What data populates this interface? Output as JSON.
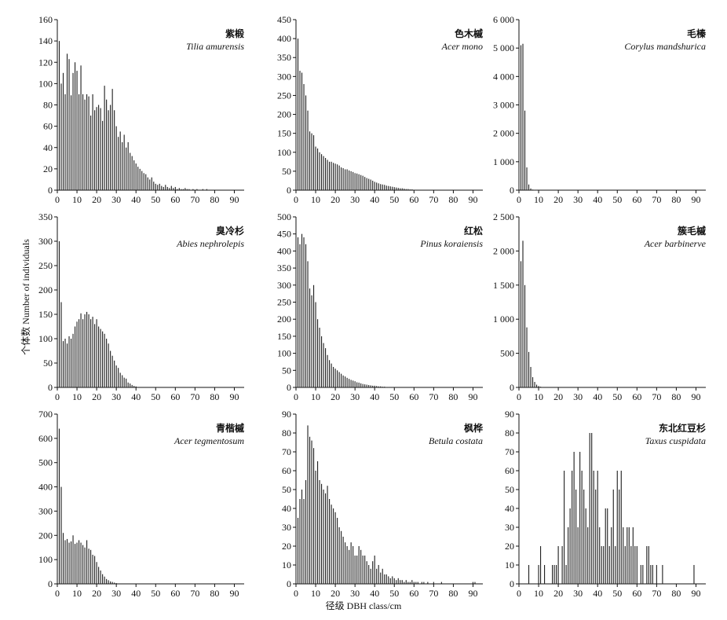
{
  "figure": {
    "ylabel": "个体数 Number of individuals",
    "xlabel": "径级 DBH class/cm"
  },
  "chart_data": [
    {
      "type": "bar",
      "title": "紫椴",
      "subtitle": "Tilia amurensis",
      "xlim": [
        0,
        95
      ],
      "ylim": [
        0,
        160
      ],
      "xticks": [
        0,
        10,
        20,
        30,
        40,
        50,
        60,
        70,
        80,
        90
      ],
      "yticks": [
        0,
        20,
        40,
        60,
        80,
        100,
        120,
        140,
        160
      ],
      "ytick_labels": [
        "0",
        "20",
        "40",
        "60",
        "80",
        "100",
        "120",
        "140",
        "160"
      ],
      "x": [
        1,
        2,
        3,
        4,
        5,
        6,
        7,
        8,
        9,
        10,
        11,
        12,
        13,
        14,
        15,
        16,
        17,
        18,
        19,
        20,
        21,
        22,
        23,
        24,
        25,
        26,
        27,
        28,
        29,
        30,
        31,
        32,
        33,
        34,
        35,
        36,
        37,
        38,
        39,
        40,
        41,
        42,
        43,
        44,
        45,
        46,
        47,
        48,
        49,
        50,
        51,
        52,
        53,
        54,
        55,
        56,
        57,
        58,
        59,
        60,
        61,
        62,
        63,
        64,
        65,
        66,
        67,
        68,
        69,
        70,
        71,
        72,
        73,
        74,
        75,
        76
      ],
      "values": [
        140,
        100,
        110,
        90,
        128,
        123,
        89,
        110,
        120,
        112,
        90,
        117,
        90,
        85,
        90,
        88,
        70,
        90,
        75,
        78,
        80,
        77,
        65,
        98,
        85,
        75,
        80,
        95,
        75,
        60,
        50,
        55,
        45,
        52,
        40,
        45,
        35,
        32,
        28,
        25,
        22,
        20,
        18,
        16,
        15,
        12,
        10,
        12,
        8,
        6,
        5,
        6,
        4,
        3,
        5,
        3,
        2,
        4,
        2,
        3,
        1,
        2,
        1,
        1,
        2,
        1,
        1,
        0,
        1,
        0,
        1,
        0,
        0,
        1,
        0,
        1
      ]
    },
    {
      "type": "bar",
      "title": "色木槭",
      "subtitle": "Acer mono",
      "xlim": [
        0,
        95
      ],
      "ylim": [
        0,
        450
      ],
      "xticks": [
        0,
        10,
        20,
        30,
        40,
        50,
        60,
        70,
        80,
        90
      ],
      "yticks": [
        0,
        50,
        100,
        150,
        200,
        250,
        300,
        350,
        400,
        450
      ],
      "ytick_labels": [
        "0",
        "50",
        "100",
        "150",
        "200",
        "250",
        "300",
        "350",
        "400",
        "450"
      ],
      "x": [
        1,
        2,
        3,
        4,
        5,
        6,
        7,
        8,
        9,
        10,
        11,
        12,
        13,
        14,
        15,
        16,
        17,
        18,
        19,
        20,
        21,
        22,
        23,
        24,
        25,
        26,
        27,
        28,
        29,
        30,
        31,
        32,
        33,
        34,
        35,
        36,
        37,
        38,
        39,
        40,
        41,
        42,
        43,
        44,
        45,
        46,
        47,
        48,
        49,
        50,
        51,
        52,
        53,
        54,
        55,
        56,
        57,
        58,
        59,
        60
      ],
      "values": [
        400,
        315,
        310,
        280,
        250,
        210,
        155,
        150,
        145,
        115,
        110,
        100,
        95,
        90,
        85,
        80,
        75,
        75,
        72,
        70,
        68,
        65,
        60,
        58,
        55,
        55,
        52,
        50,
        48,
        45,
        44,
        42,
        40,
        38,
        35,
        32,
        30,
        28,
        25,
        22,
        20,
        18,
        16,
        15,
        14,
        12,
        11,
        10,
        9,
        8,
        7,
        6,
        5,
        5,
        4,
        3,
        3,
        2,
        2,
        1
      ]
    },
    {
      "type": "bar",
      "title": "毛榛",
      "subtitle": "Corylus mandshurica",
      "xlim": [
        0,
        95
      ],
      "ylim": [
        0,
        6000
      ],
      "xticks": [
        0,
        10,
        20,
        30,
        40,
        50,
        60,
        70,
        80,
        90
      ],
      "yticks": [
        0,
        1000,
        2000,
        3000,
        4000,
        5000,
        6000
      ],
      "ytick_labels": [
        "0",
        "1 000",
        "2 000",
        "3 000",
        "4 000",
        "5 000",
        "6 000"
      ],
      "x": [
        1,
        2,
        3,
        4,
        5,
        6,
        7,
        8,
        9,
        10
      ],
      "values": [
        5100,
        5150,
        2800,
        800,
        200,
        60,
        20,
        10,
        5,
        2
      ]
    },
    {
      "type": "bar",
      "title": "臭冷杉",
      "subtitle": "Abies nephrolepis",
      "xlim": [
        0,
        95
      ],
      "ylim": [
        0,
        350
      ],
      "xticks": [
        0,
        10,
        20,
        30,
        40,
        50,
        60,
        70,
        80,
        90
      ],
      "yticks": [
        0,
        50,
        100,
        150,
        200,
        250,
        300,
        350
      ],
      "ytick_labels": [
        "0",
        "50",
        "100",
        "150",
        "200",
        "250",
        "300",
        "350"
      ],
      "x": [
        1,
        2,
        3,
        4,
        5,
        6,
        7,
        8,
        9,
        10,
        11,
        12,
        13,
        14,
        15,
        16,
        17,
        18,
        19,
        20,
        21,
        22,
        23,
        24,
        25,
        26,
        27,
        28,
        29,
        30,
        31,
        32,
        33,
        34,
        35,
        36,
        37,
        38,
        39,
        40
      ],
      "values": [
        300,
        175,
        95,
        100,
        90,
        105,
        100,
        110,
        125,
        135,
        140,
        152,
        140,
        150,
        155,
        150,
        140,
        145,
        130,
        140,
        125,
        120,
        115,
        110,
        100,
        90,
        75,
        65,
        55,
        45,
        40,
        30,
        25,
        20,
        18,
        10,
        8,
        5,
        3,
        2
      ]
    },
    {
      "type": "bar",
      "title": "红松",
      "subtitle": "Pinus koraiensis",
      "xlim": [
        0,
        95
      ],
      "ylim": [
        0,
        500
      ],
      "xticks": [
        0,
        10,
        20,
        30,
        40,
        50,
        60,
        70,
        80,
        90
      ],
      "yticks": [
        0,
        50,
        100,
        150,
        200,
        250,
        300,
        350,
        400,
        450,
        500
      ],
      "ytick_labels": [
        "0",
        "50",
        "100",
        "150",
        "200",
        "250",
        "300",
        "350",
        "400",
        "450",
        "500"
      ],
      "x": [
        1,
        2,
        3,
        4,
        5,
        6,
        7,
        8,
        9,
        10,
        11,
        12,
        13,
        14,
        15,
        16,
        17,
        18,
        19,
        20,
        21,
        22,
        23,
        24,
        25,
        26,
        27,
        28,
        29,
        30,
        31,
        32,
        33,
        34,
        35,
        36,
        37,
        38,
        39,
        40,
        41,
        42,
        43,
        44,
        45,
        46,
        47,
        48,
        49,
        50
      ],
      "values": [
        440,
        420,
        450,
        440,
        420,
        370,
        290,
        270,
        300,
        250,
        200,
        175,
        150,
        130,
        115,
        95,
        80,
        70,
        60,
        55,
        50,
        45,
        40,
        35,
        32,
        28,
        25,
        22,
        20,
        18,
        15,
        14,
        12,
        10,
        9,
        8,
        7,
        6,
        5,
        5,
        4,
        3,
        3,
        2,
        2,
        1,
        1,
        1,
        1,
        1
      ]
    },
    {
      "type": "bar",
      "title": "簇毛槭",
      "subtitle": "Acer barbinerve",
      "xlim": [
        0,
        95
      ],
      "ylim": [
        0,
        2500
      ],
      "xticks": [
        0,
        10,
        20,
        30,
        40,
        50,
        60,
        70,
        80,
        90
      ],
      "yticks": [
        0,
        500,
        1000,
        1500,
        2000,
        2500
      ],
      "ytick_labels": [
        "0",
        "500",
        "1 000",
        "1 500",
        "2 000",
        "2 500"
      ],
      "x": [
        1,
        2,
        3,
        4,
        5,
        6,
        7,
        8,
        9,
        10,
        11,
        12
      ],
      "values": [
        1850,
        2150,
        1500,
        880,
        520,
        300,
        150,
        80,
        40,
        20,
        10,
        5
      ]
    },
    {
      "type": "bar",
      "title": "青楷槭",
      "subtitle": "Acer tegmentosum",
      "xlim": [
        0,
        95
      ],
      "ylim": [
        0,
        700
      ],
      "xticks": [
        0,
        10,
        20,
        30,
        40,
        50,
        60,
        70,
        80,
        90
      ],
      "yticks": [
        0,
        100,
        200,
        300,
        400,
        500,
        600,
        700
      ],
      "ytick_labels": [
        "0",
        "100",
        "200",
        "300",
        "400",
        "500",
        "600",
        "700"
      ],
      "x": [
        1,
        2,
        3,
        4,
        5,
        6,
        7,
        8,
        9,
        10,
        11,
        12,
        13,
        14,
        15,
        16,
        17,
        18,
        19,
        20,
        21,
        22,
        23,
        24,
        25,
        26,
        27,
        28,
        29,
        30
      ],
      "values": [
        640,
        400,
        210,
        180,
        185,
        170,
        175,
        200,
        165,
        170,
        180,
        170,
        160,
        150,
        180,
        145,
        140,
        120,
        115,
        90,
        70,
        55,
        40,
        30,
        20,
        15,
        10,
        8,
        5,
        3
      ]
    },
    {
      "type": "bar",
      "title": "枫桦",
      "subtitle": "Betula costata",
      "xlim": [
        0,
        95
      ],
      "ylim": [
        0,
        90
      ],
      "xticks": [
        0,
        10,
        20,
        30,
        40,
        50,
        60,
        70,
        80,
        90
      ],
      "yticks": [
        0,
        10,
        20,
        30,
        40,
        50,
        60,
        70,
        80,
        90
      ],
      "ytick_labels": [
        "0",
        "10",
        "20",
        "30",
        "40",
        "50",
        "60",
        "70",
        "80",
        "90"
      ],
      "x": [
        1,
        2,
        3,
        4,
        5,
        6,
        7,
        8,
        9,
        10,
        11,
        12,
        13,
        14,
        15,
        16,
        17,
        18,
        19,
        20,
        21,
        22,
        23,
        24,
        25,
        26,
        27,
        28,
        29,
        30,
        31,
        32,
        33,
        34,
        35,
        36,
        37,
        38,
        39,
        40,
        41,
        42,
        43,
        44,
        45,
        46,
        47,
        48,
        49,
        50,
        51,
        52,
        53,
        54,
        55,
        56,
        57,
        58,
        59,
        60,
        61,
        62,
        63,
        64,
        65,
        66,
        67,
        68,
        69,
        70,
        71,
        72,
        73,
        74,
        75,
        76,
        77,
        78,
        79,
        80,
        81,
        82,
        83,
        84,
        85,
        86,
        87,
        88,
        89,
        90,
        91
      ],
      "values": [
        35,
        45,
        50,
        45,
        55,
        84,
        78,
        76,
        72,
        60,
        65,
        55,
        53,
        50,
        48,
        52,
        45,
        42,
        40,
        38,
        35,
        30,
        28,
        25,
        22,
        20,
        18,
        22,
        20,
        15,
        15,
        20,
        18,
        15,
        15,
        12,
        10,
        8,
        12,
        15,
        8,
        10,
        6,
        8,
        5,
        5,
        4,
        3,
        4,
        3,
        2,
        3,
        2,
        2,
        1,
        2,
        1,
        1,
        2,
        1,
        1,
        1,
        0,
        1,
        1,
        0,
        1,
        0,
        0,
        1,
        0,
        0,
        0,
        1,
        0,
        0,
        0,
        0,
        0,
        0,
        0,
        0,
        0,
        0,
        0,
        0,
        0,
        0,
        0,
        1,
        1
      ]
    },
    {
      "type": "bar",
      "title": "东北红豆杉",
      "subtitle": "Taxus cuspidata",
      "xlim": [
        0,
        95
      ],
      "ylim": [
        0,
        90
      ],
      "xticks": [
        0,
        10,
        20,
        30,
        40,
        50,
        60,
        70,
        80,
        90
      ],
      "yticks": [
        0,
        10,
        20,
        30,
        40,
        50,
        60,
        70,
        80,
        90
      ],
      "ytick_labels": [
        "0",
        "10",
        "20",
        "30",
        "40",
        "50",
        "60",
        "70",
        "80",
        "90"
      ],
      "x": [
        5,
        10,
        11,
        13,
        17,
        18,
        19,
        20,
        22,
        23,
        24,
        25,
        26,
        27,
        28,
        29,
        30,
        31,
        32,
        33,
        34,
        35,
        36,
        37,
        38,
        39,
        40,
        41,
        42,
        43,
        44,
        45,
        46,
        47,
        48,
        49,
        50,
        51,
        52,
        53,
        54,
        55,
        56,
        57,
        58,
        59,
        60,
        62,
        63,
        65,
        66,
        67,
        68,
        70,
        73,
        89
      ],
      "values": [
        10,
        10,
        20,
        10,
        10,
        10,
        10,
        20,
        20,
        60,
        10,
        30,
        40,
        60,
        70,
        50,
        30,
        70,
        60,
        50,
        40,
        30,
        80,
        80,
        60,
        50,
        60,
        30,
        20,
        20,
        40,
        40,
        20,
        30,
        50,
        20,
        60,
        50,
        60,
        30,
        20,
        30,
        30,
        20,
        30,
        20,
        20,
        10,
        10,
        20,
        20,
        10,
        10,
        10,
        10,
        10
      ]
    }
  ]
}
